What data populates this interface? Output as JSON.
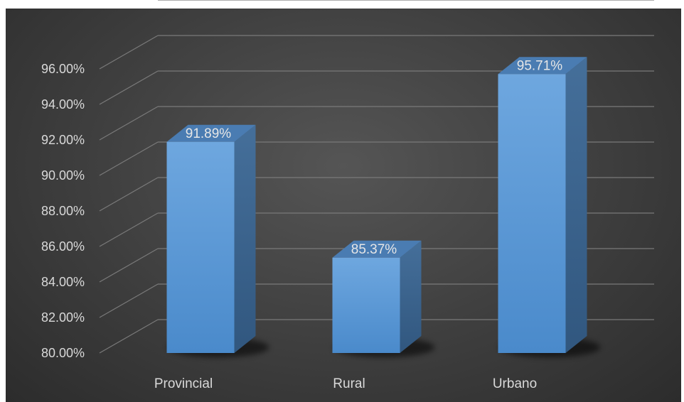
{
  "chart_data": {
    "type": "bar",
    "style": "3d-column",
    "categories": [
      "Provincial",
      "Rural",
      "Urbano"
    ],
    "values": [
      91.89,
      85.37,
      95.71
    ],
    "data_labels": [
      "91.89%",
      "85.37%",
      "95.71%"
    ],
    "ylim": [
      80,
      96
    ],
    "y_ticks": [
      80,
      82,
      84,
      86,
      88,
      90,
      92,
      94,
      96
    ],
    "y_tick_labels": [
      "80.00%",
      "82.00%",
      "84.00%",
      "86.00%",
      "88.00%",
      "90.00%",
      "92.00%",
      "94.00%",
      "96.00%"
    ],
    "grid": true,
    "legend": "none",
    "title": "",
    "xlabel": "",
    "ylabel": "",
    "colors": {
      "background": "#404040",
      "bar_front": "#5b9bd5",
      "bar_side": "#3b6a98",
      "bar_top": "#6fa8dc",
      "grid": "#7a7a7a",
      "text": "#d9d9d9"
    }
  }
}
